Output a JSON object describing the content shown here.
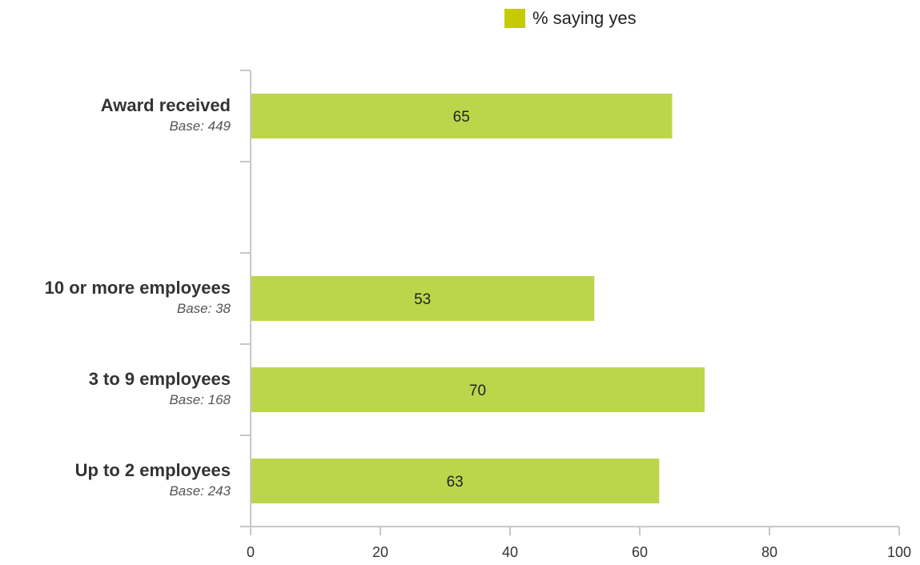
{
  "legend": {
    "label": "% saying yes",
    "color": "#c4cc00"
  },
  "chart_data": {
    "type": "bar",
    "orientation": "horizontal",
    "title": "",
    "xlabel": "",
    "ylabel": "",
    "xlim": [
      0,
      100
    ],
    "ticks": [
      "0",
      "20",
      "40",
      "60",
      "80",
      "100"
    ],
    "grid": false,
    "legend_position": "top",
    "bar_color": "#bbd64a",
    "categories": [
      {
        "label": "Award received",
        "base": "Base: 449",
        "value": 65,
        "value_label": "65"
      },
      {
        "label": "",
        "base": "",
        "value": null,
        "value_label": ""
      },
      {
        "label": "10 or more employees",
        "base": "Base: 38",
        "value": 53,
        "value_label": "53"
      },
      {
        "label": "3 to 9 employees",
        "base": "Base: 168",
        "value": 70,
        "value_label": "70"
      },
      {
        "label": "Up to 2 employees",
        "base": "Base: 243",
        "value": 63,
        "value_label": "63"
      }
    ],
    "series": [
      {
        "name": "% saying yes",
        "values": [
          65,
          null,
          53,
          70,
          63
        ]
      }
    ]
  }
}
